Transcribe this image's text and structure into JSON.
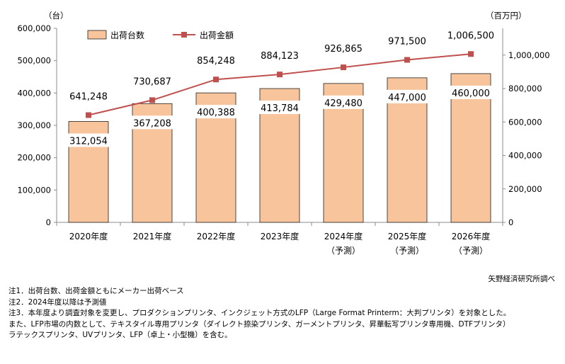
{
  "chart_data": {
    "type": "bar",
    "categories": [
      "2020年度",
      "2021年度",
      "2022年度",
      "2023年度",
      "2024年度",
      "2025年度",
      "2026年度"
    ],
    "category_sublabels": [
      "",
      "",
      "",
      "",
      "（予測）",
      "（予測）",
      "（予測）"
    ],
    "left_unit": "（台）",
    "right_unit": "（百万円）",
    "y_left_ticks": [
      "600,000",
      "500,000",
      "400,000",
      "300,000",
      "200,000",
      "100,000",
      "0"
    ],
    "y_right_ticks": [
      "1,000,000",
      "800,000",
      "600,000",
      "400,000",
      "200,000",
      "0"
    ],
    "y_left_lim": [
      0,
      600000
    ],
    "y_right_lim": [
      0,
      1160000
    ],
    "legend_position": "top-left",
    "series": [
      {
        "name": "出荷台数",
        "kind": "bar",
        "axis": "left",
        "color": "#f8c49b",
        "values": [
          312054,
          367208,
          400388,
          413784,
          429480,
          447000,
          460000
        ],
        "labels": [
          "312,054",
          "367,208",
          "400,388",
          "413,784",
          "429,480",
          "447,000",
          "460,000"
        ]
      },
      {
        "name": "出荷金額",
        "kind": "line",
        "axis": "right",
        "color": "#c0504d",
        "values": [
          641248,
          730687,
          854248,
          884123,
          926865,
          971500,
          1006500
        ],
        "labels": [
          "641,248",
          "730,687",
          "854,248",
          "884,123",
          "926,865",
          "971,500",
          "1,006,500"
        ]
      }
    ]
  },
  "source": "矢野経済研究所調べ",
  "notes": [
    "注1．出荷台数、出荷金額ともにメーカー出荷ベース",
    "注2．2024年度以降は予測値",
    "注3．本年度より調査対象を変更し、プロダクションプリンタ、インクジェット方式のLFP（Large Format Printerm：大判プリンタ）を対象とした。",
    "また、LFP市場の内数として、テキスタイル専用プリンタ（ダイレクト捺染プリンタ、ガーメントプリンタ、昇華転写プリンタ専用機、DTFプリンタ）",
    "ラテックスプリンタ、UVプリンタ、LFP（卓上・小型機）を含む。"
  ]
}
